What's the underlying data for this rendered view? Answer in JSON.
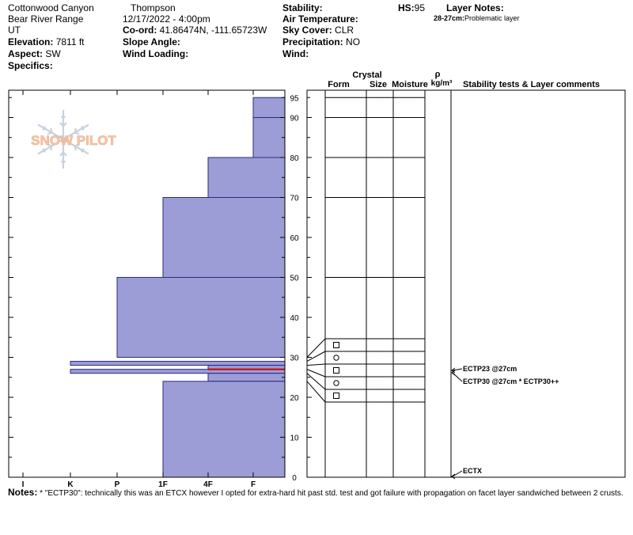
{
  "header": {
    "location": "Cottonwood Canyon",
    "range": "Bear River Range",
    "state": "UT",
    "elevation_label": "Elevation:",
    "elevation_value": "7811 ft",
    "aspect_label": "Aspect:",
    "aspect_value": "SW",
    "specifics_label": "Specifics:",
    "observer": "Thompson",
    "datetime": "12/17/2022 - 4:00pm",
    "coord_label": "Co-ord:",
    "coord_value": "41.86474N, -111.65723W",
    "slope_label": "Slope Angle:",
    "slope_value": "",
    "wind_loading_label": "Wind Loading:",
    "wind_loading_value": "",
    "stability_label": "Stability:",
    "stability_value": "",
    "air_temp_label": "Air Temperature:",
    "air_temp_value": "",
    "sky_label": "Sky Cover:",
    "sky_value": "CLR",
    "precip_label": "Precipitation:",
    "precip_value": "NO",
    "wind_label": "Wind:",
    "wind_value": "",
    "hs_label": "HS:",
    "hs_value": "95",
    "layer_notes_label": "Layer Notes:",
    "layer_note_range": "28-27cm:",
    "layer_note_text": "Problematic layer"
  },
  "logo": {
    "text": "SNOW PILOT"
  },
  "columns": {
    "crystal": "Crystal",
    "form": "Form",
    "size": "Size",
    "moisture": "Moisture",
    "rho": "ρ",
    "density_unit": "kg/m³",
    "stability": "Stability tests & Layer comments"
  },
  "notes": {
    "label": "Notes:",
    "text": "* \"ECTP30\": technically this was an ETCX however I opted for extra-hard hit past std. test and got failure with propagation on facet layer sandwiched between 2 crusts."
  },
  "colors": {
    "layer_fill": "#9c9cd6",
    "layer_stroke": "#2b2b80",
    "problem_line": "#cc0000",
    "logo_text": "#f5c9a8",
    "logo_flake": "#c8d2df"
  },
  "chart_data": {
    "type": "bar",
    "title": "",
    "xlabel": "",
    "ylabel": "",
    "hardness_scale": [
      "I",
      "K",
      "P",
      "1F",
      "4F",
      "F"
    ],
    "y_ticks": [
      0,
      10,
      20,
      30,
      40,
      50,
      60,
      70,
      80,
      90,
      95
    ],
    "ylim": [
      0,
      97
    ],
    "layers": [
      {
        "bottom": 90,
        "top": 95,
        "hardness": "F"
      },
      {
        "bottom": 80,
        "top": 90,
        "hardness": "F"
      },
      {
        "bottom": 70,
        "top": 80,
        "hardness": "4F"
      },
      {
        "bottom": 50,
        "top": 70,
        "hardness": "1F"
      },
      {
        "bottom": 30,
        "top": 50,
        "hardness": "P"
      },
      {
        "bottom": 28,
        "top": 29,
        "hardness": "K"
      },
      {
        "bottom": 27,
        "top": 28,
        "hardness": "4F"
      },
      {
        "bottom": 26,
        "top": 27,
        "hardness": "K"
      },
      {
        "bottom": 24,
        "top": 26,
        "hardness": "4F"
      },
      {
        "bottom": 0,
        "top": 24,
        "hardness": "1F"
      }
    ],
    "problem_layer_depth": 27,
    "crystal_symbols": [
      {
        "depth": 33,
        "symbol": "□"
      },
      {
        "depth": 30,
        "symbol": "○"
      },
      {
        "depth": 27,
        "symbol": "□"
      },
      {
        "depth": 23.5,
        "symbol": "○"
      },
      {
        "depth": 20.5,
        "symbol": "□"
      }
    ],
    "stability_tests": [
      {
        "depth": 27,
        "label": "ECTP23 @27cm"
      },
      {
        "depth": 25.5,
        "label": "ECTP30 @27cm * ECTP30++"
      },
      {
        "depth": 0.5,
        "label": "ECTX"
      }
    ]
  }
}
